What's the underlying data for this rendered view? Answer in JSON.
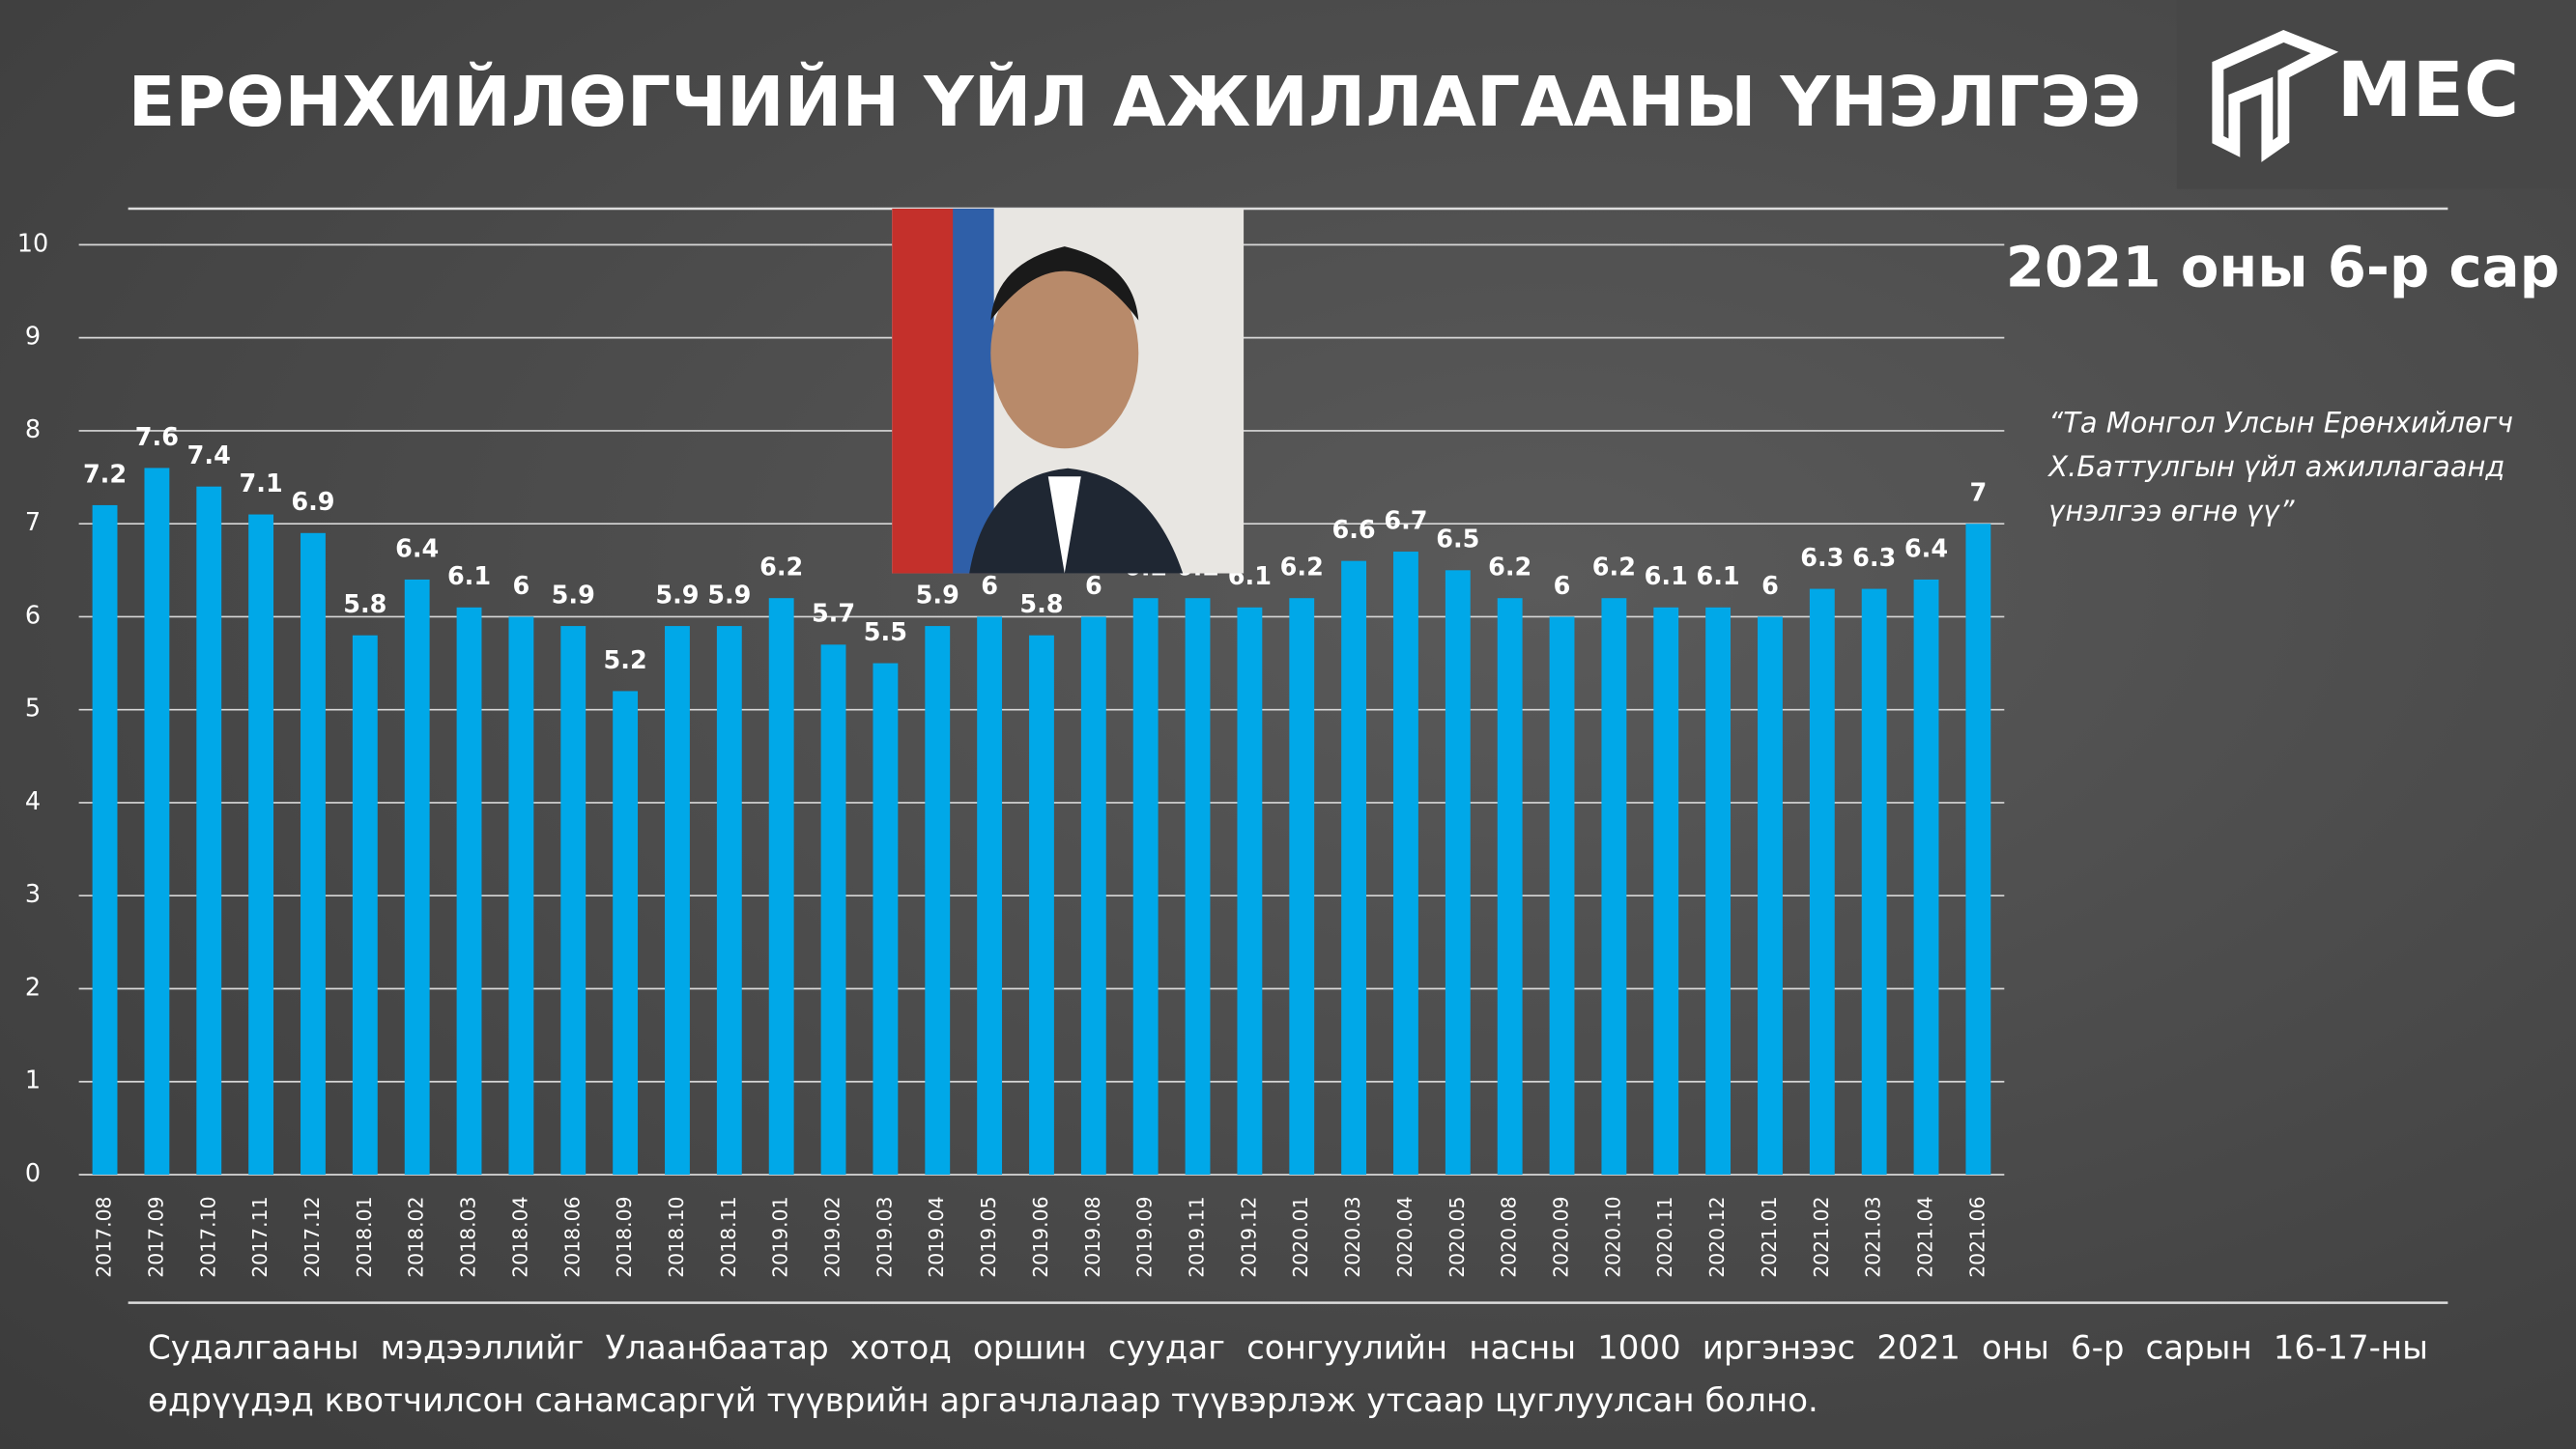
{
  "chart_data": {
    "type": "bar",
    "title": "ЕРӨНХИЙЛӨГЧИЙН ҮЙЛ АЖИЛЛАГААНЫ ҮНЭЛГЭЭ",
    "subtitle": "2021 оны 6-р сар",
    "logo": "MEC",
    "question": "“Та Монгол Улсын Ерөнхийлөгч Х.Баттулгын үйл ажиллагаанд үнэлгээ өгнө үү”",
    "note": "Судалгааны мэдээллийг Улаанбаатар хотод оршин суудаг сонгуулийн насны 1000 иргэнээс 2021 оны 6-р сарын 16-17-ны өдрүүдэд квотчилсон санамсаргүй түүврийн аргачлалаар түүвэрлэж утсаар цуглуулсан болно.",
    "categories": [
      "2017.08",
      "2017.09",
      "2017.10",
      "2017.11",
      "2017.12",
      "2018.01",
      "2018.02",
      "2018.03",
      "2018.04",
      "2018.06",
      "2018.09",
      "2018.10",
      "2018.11",
      "2019.01",
      "2019.02",
      "2019.03",
      "2019.04",
      "2019.05",
      "2019.06",
      "2019.08",
      "2019.09",
      "2019.11",
      "2019.12",
      "2020.01",
      "2020.03",
      "2020.04",
      "2020.05",
      "2020.08",
      "2020.09",
      "2020.10",
      "2020.11",
      "2020.12",
      "2021.01",
      "2021.02",
      "2021.03",
      "2021.04",
      "2021.06"
    ],
    "values": [
      7.2,
      7.6,
      7.4,
      7.1,
      6.9,
      5.8,
      6.4,
      6.1,
      6,
      5.9,
      5.2,
      5.9,
      5.9,
      6.2,
      5.7,
      5.5,
      5.9,
      6,
      5.8,
      6,
      6.2,
      6.2,
      6.1,
      6.2,
      6.6,
      6.7,
      6.5,
      6.2,
      6,
      6.2,
      6.1,
      6.1,
      6,
      6.3,
      6.3,
      6.4,
      7
    ],
    "color": "#00a8e8",
    "ylim": [
      0,
      10
    ],
    "yticks": [
      0,
      1,
      2,
      3,
      4,
      5,
      6,
      7,
      8,
      9,
      10
    ],
    "grid": true
  }
}
